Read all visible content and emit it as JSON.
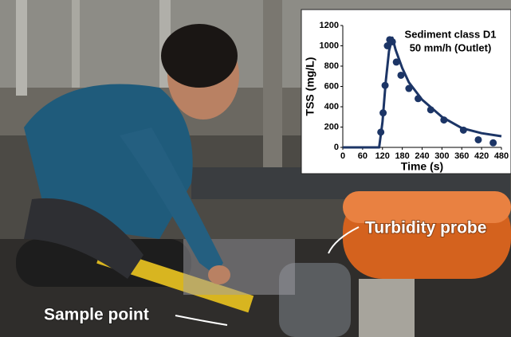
{
  "photo": {
    "labels": [
      "Turbidity probe",
      "Sample point"
    ]
  },
  "chart_data": {
    "type": "line",
    "title": [
      "Sediment class D1",
      "50 mm/h (Outlet)"
    ],
    "x_label": "Time (s)",
    "y_label": "TSS (mg/L)",
    "xlim": [
      0,
      480
    ],
    "xticks": [
      0,
      60,
      120,
      180,
      240,
      300,
      360,
      420,
      480
    ],
    "ylim": [
      0,
      1200
    ],
    "yticks": [
      0,
      200,
      400,
      600,
      800,
      1000,
      1200
    ],
    "series": [
      {
        "color": "#1c3566",
        "marker": false,
        "x": [
          0,
          60,
          110,
          120,
          130,
          140,
          150,
          160,
          180,
          200,
          240,
          300,
          360,
          420,
          480
        ],
        "values": [
          0,
          0,
          0,
          250,
          650,
          950,
          1080,
          960,
          780,
          640,
          470,
          300,
          190,
          140,
          110
        ]
      },
      {
        "color": "#1c3566",
        "marker": true,
        "x": [
          115,
          122,
          128,
          135,
          142,
          150,
          162,
          176,
          200,
          228,
          266,
          306,
          365,
          410,
          455
        ],
        "values": [
          150,
          340,
          610,
          1000,
          1060,
          1040,
          840,
          710,
          580,
          480,
          370,
          270,
          170,
          75,
          45
        ]
      }
    ]
  }
}
